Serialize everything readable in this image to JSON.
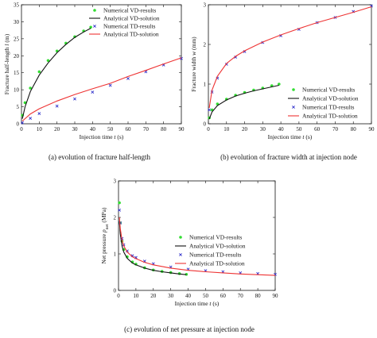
{
  "colors": {
    "vd_numerical": "#33dd33",
    "vd_analytical": "#111111",
    "td_numerical": "#3333cc",
    "td_analytical": "#ee3333"
  },
  "chart_data": [
    {
      "type": "scatter",
      "caption": "(a) evolution of fracture half-length",
      "xlabel_prefix": "Injection time ",
      "xlabel_var": "t",
      "xlabel_unit": " (s)",
      "ylabel_prefix": "Fracture half-length ",
      "ylabel_var": "l",
      "ylabel_unit": " (m)",
      "xlim": [
        0,
        90
      ],
      "ylim": [
        0,
        35
      ],
      "xticks": [
        0,
        10,
        20,
        30,
        40,
        50,
        60,
        70,
        80,
        90
      ],
      "yticks": [
        0,
        5,
        10,
        15,
        20,
        25,
        30,
        35
      ],
      "legend": "top-right",
      "series": [
        {
          "name": "Numerical VD-results",
          "kind": "numerical",
          "color_key": "vd_numerical",
          "x": [
            0.5,
            2,
            5,
            10,
            15,
            20,
            25,
            30,
            35,
            39
          ],
          "y": [
            2.5,
            6.2,
            10.5,
            15.3,
            18.6,
            21.4,
            23.7,
            25.6,
            27.3,
            28.4
          ]
        },
        {
          "name": "Analytical VD-solution",
          "kind": "analytical",
          "color_key": "vd_analytical",
          "x": [
            0.5,
            2,
            5,
            10,
            15,
            20,
            25,
            30,
            35,
            39
          ],
          "y": [
            1.5,
            5.0,
            9.5,
            14.3,
            17.9,
            20.9,
            23.3,
            25.4,
            27.0,
            28.1
          ]
        },
        {
          "name": "Numerical TD-results",
          "kind": "numerical",
          "color_key": "td_numerical",
          "x": [
            0.5,
            5,
            10,
            20,
            30,
            40,
            50,
            60,
            70,
            80,
            90
          ],
          "y": [
            0.3,
            1.6,
            3.0,
            5.2,
            7.3,
            9.3,
            11.3,
            13.3,
            15.3,
            17.3,
            19.2
          ]
        },
        {
          "name": "Analytical TD-solution",
          "kind": "analytical",
          "color_key": "td_analytical",
          "x": [
            0.5,
            5,
            10,
            20,
            30,
            40,
            50,
            60,
            70,
            80,
            90
          ],
          "y": [
            0.8,
            2.9,
            4.4,
            6.7,
            8.6,
            10.3,
            11.9,
            13.9,
            15.7,
            17.6,
            19.4
          ]
        }
      ]
    },
    {
      "type": "scatter",
      "caption": "(b) evolution of fracture width at injection node",
      "xlabel_prefix": "Injection time ",
      "xlabel_var": "t",
      "xlabel_unit": " (s)",
      "ylabel_prefix": "Fracture width ",
      "ylabel_var": "w",
      "ylabel_unit": " (mm)",
      "xlim": [
        0,
        90
      ],
      "ylim": [
        0,
        3
      ],
      "xticks": [
        0,
        10,
        20,
        30,
        40,
        50,
        60,
        70,
        80,
        90
      ],
      "yticks": [
        0,
        1,
        2,
        3
      ],
      "legend": "bottom-right",
      "series": [
        {
          "name": "Numerical VD-results",
          "kind": "numerical",
          "color_key": "vd_numerical",
          "x": [
            0.5,
            2,
            5,
            10,
            15,
            20,
            25,
            30,
            35,
            39
          ],
          "y": [
            0.15,
            0.35,
            0.5,
            0.62,
            0.72,
            0.79,
            0.85,
            0.9,
            0.96,
            1.0
          ]
        },
        {
          "name": "Analytical VD-solution",
          "kind": "analytical",
          "color_key": "vd_analytical",
          "x": [
            0.5,
            2,
            5,
            10,
            15,
            20,
            25,
            30,
            35,
            39
          ],
          "y": [
            0.12,
            0.3,
            0.46,
            0.6,
            0.7,
            0.77,
            0.83,
            0.88,
            0.93,
            0.97
          ]
        },
        {
          "name": "Numerical TD-results",
          "kind": "numerical",
          "color_key": "td_numerical",
          "x": [
            0.5,
            2,
            5,
            10,
            15,
            20,
            30,
            40,
            50,
            60,
            70,
            80,
            90
          ],
          "y": [
            0.35,
            0.8,
            1.15,
            1.5,
            1.68,
            1.82,
            2.05,
            2.22,
            2.38,
            2.55,
            2.68,
            2.83,
            2.97
          ]
        },
        {
          "name": "Analytical TD-solution",
          "kind": "analytical",
          "color_key": "td_analytical",
          "x": [
            0.5,
            2,
            5,
            10,
            15,
            20,
            30,
            40,
            50,
            60,
            70,
            80,
            90
          ],
          "y": [
            0.4,
            0.85,
            1.2,
            1.52,
            1.7,
            1.84,
            2.06,
            2.24,
            2.4,
            2.55,
            2.68,
            2.81,
            2.95
          ]
        }
      ]
    },
    {
      "type": "scatter",
      "caption": "(c) evolution of net pressure at injection node",
      "xlabel_prefix": "Injection time ",
      "xlabel_var": "t",
      "xlabel_unit": " (s)",
      "ylabel_prefix": "Net pressure ",
      "ylabel_var": "p",
      "ylabel_sub": "net",
      "ylabel_unit": " (MPa)",
      "xlim": [
        0,
        90
      ],
      "ylim": [
        0,
        3
      ],
      "xticks": [
        0,
        10,
        20,
        30,
        40,
        50,
        60,
        70,
        80,
        90
      ],
      "yticks": [
        0,
        1,
        2,
        3
      ],
      "legend": "top-right",
      "series": [
        {
          "name": "Numerical VD-results",
          "kind": "numerical",
          "color_key": "vd_numerical",
          "x": [
            0.5,
            1,
            2,
            3,
            5,
            8,
            10,
            15,
            20,
            25,
            30,
            35,
            39
          ],
          "y": [
            2.4,
            1.85,
            1.35,
            1.12,
            0.92,
            0.78,
            0.72,
            0.62,
            0.56,
            0.52,
            0.49,
            0.46,
            0.44
          ]
        },
        {
          "name": "Analytical VD-solution",
          "kind": "analytical",
          "color_key": "vd_analytical",
          "x": [
            0.5,
            1,
            2,
            3,
            5,
            8,
            10,
            15,
            20,
            25,
            30,
            35,
            39
          ],
          "y": [
            1.9,
            1.55,
            1.22,
            1.05,
            0.88,
            0.75,
            0.7,
            0.61,
            0.55,
            0.51,
            0.48,
            0.45,
            0.43
          ]
        },
        {
          "name": "Numerical TD-results",
          "kind": "numerical",
          "color_key": "td_numerical",
          "x": [
            0.5,
            1,
            2,
            3,
            5,
            8,
            10,
            15,
            20,
            30,
            40,
            50,
            60,
            70,
            80,
            90
          ],
          "y": [
            2.2,
            1.85,
            1.42,
            1.25,
            1.08,
            0.95,
            0.9,
            0.8,
            0.73,
            0.64,
            0.58,
            0.54,
            0.51,
            0.48,
            0.46,
            0.44
          ]
        },
        {
          "name": "Analytical TD-solution",
          "kind": "analytical",
          "color_key": "td_analytical",
          "x": [
            0.5,
            1,
            2,
            3,
            5,
            8,
            10,
            15,
            20,
            30,
            40,
            50,
            60,
            70,
            80,
            90
          ],
          "y": [
            2.0,
            1.7,
            1.38,
            1.22,
            1.05,
            0.92,
            0.87,
            0.77,
            0.7,
            0.61,
            0.55,
            0.51,
            0.48,
            0.45,
            0.43,
            0.41
          ]
        }
      ]
    }
  ]
}
